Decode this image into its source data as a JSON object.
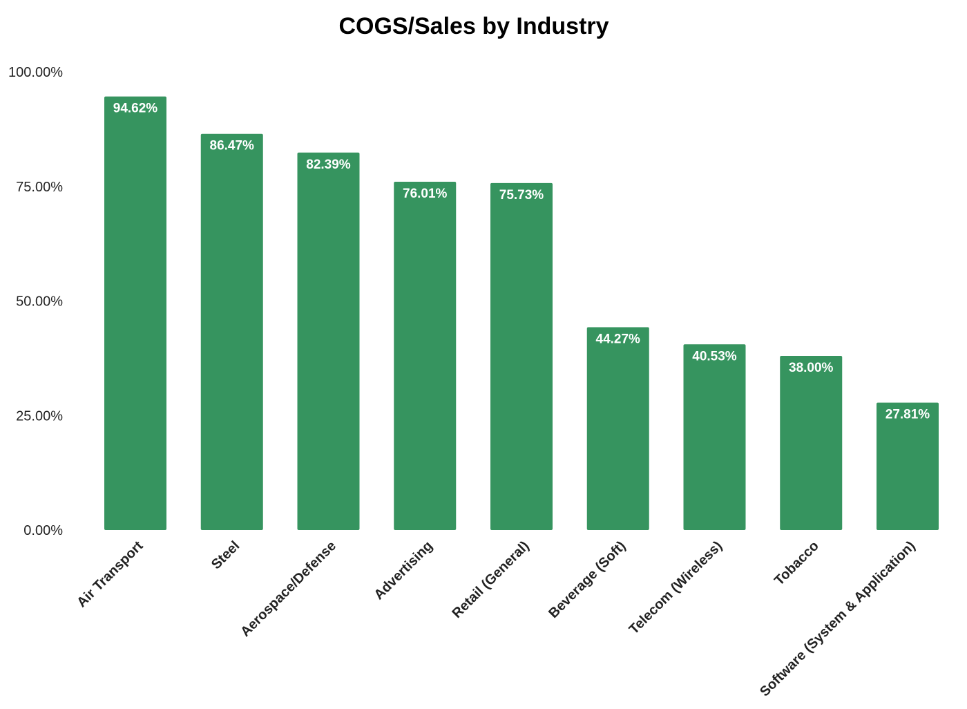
{
  "chart_data": {
    "type": "bar",
    "title": "COGS/Sales by Industry",
    "xlabel": "",
    "ylabel": "",
    "categories": [
      "Air Transport",
      "Steel",
      "Aerospace/Defense",
      "Advertising",
      "Retail (General)",
      "Beverage (Soft)",
      "Telecom (Wireless)",
      "Tobacco",
      "Software (System & Application)"
    ],
    "values": [
      94.62,
      86.47,
      82.39,
      76.01,
      75.73,
      44.27,
      40.53,
      38.0,
      27.81
    ],
    "data_labels": [
      "94.62%",
      "86.47%",
      "82.39%",
      "76.01%",
      "75.73%",
      "44.27%",
      "40.53%",
      "38.00%",
      "27.81%"
    ],
    "ylim": [
      0,
      100
    ],
    "y_ticks": [
      0,
      25,
      50,
      75,
      100
    ],
    "y_tick_labels": [
      "0.00%",
      "25.00%",
      "50.00%",
      "75.00%",
      "100.00%"
    ],
    "grid": false,
    "legend": "none",
    "bar_color": "#36945f",
    "data_label_color": "#ffffff"
  }
}
